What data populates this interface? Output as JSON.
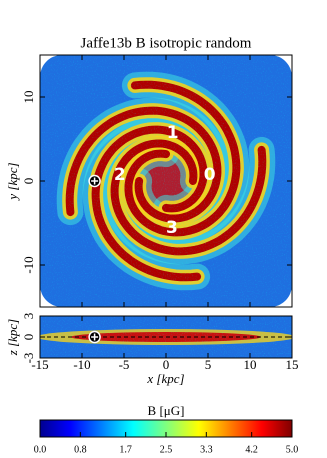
{
  "chart_data": {
    "type": "map",
    "title": "Jaffe13b B isotropic random",
    "xlabel": "x [kpc]",
    "xlim": [
      -15,
      15
    ],
    "xticks": [
      -15,
      -10,
      -5,
      0,
      5,
      10,
      15
    ],
    "panels": [
      {
        "ylabel": "y [kpc]",
        "ylim": [
          -15,
          15
        ],
        "yticks": [
          -10,
          0,
          10
        ]
      },
      {
        "ylabel": "z [kpc]",
        "ylim": [
          -3,
          3
        ],
        "yticks": [
          -3,
          0,
          3
        ]
      }
    ],
    "arm_labels": [
      {
        "text": "1",
        "x": 0.8,
        "y": 5.7
      },
      {
        "text": "2",
        "x": -5.5,
        "y": 0.7
      },
      {
        "text": "0",
        "x": 5.2,
        "y": 0.7
      },
      {
        "text": "3",
        "x": 0.7,
        "y": -5.6
      }
    ],
    "sun": {
      "x": -8.5,
      "y": 0,
      "z": 0
    },
    "colorbar": {
      "label": "B [μG]",
      "lim": [
        0,
        5
      ],
      "ticks": [
        {
          "value": 0,
          "label": "0.0"
        },
        0.8,
        1.7,
        2.5,
        3.3,
        4.2,
        {
          "value": 5,
          "label": "5.0"
        }
      ]
    }
  }
}
